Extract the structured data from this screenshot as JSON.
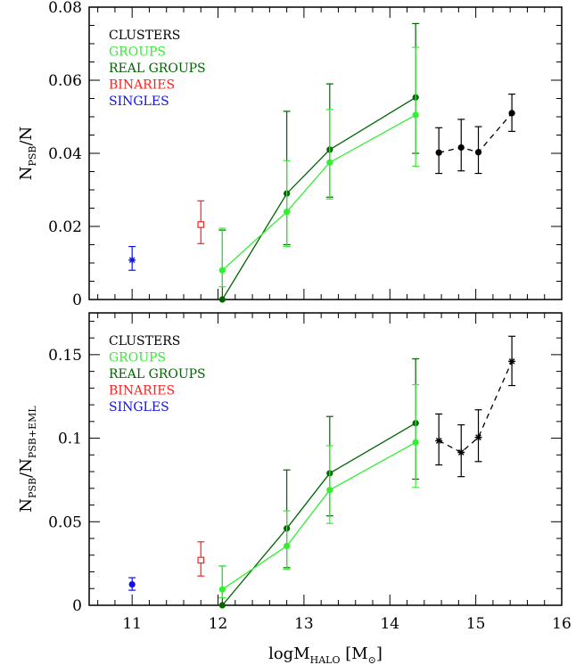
{
  "chart_data": [
    {
      "type": "line",
      "ylabel_main": "N",
      "ylabel_sub": "PSB",
      "ylabel_tail": "/N",
      "ylabel_sub2": "",
      "xlim": [
        10.5,
        16
      ],
      "ylim": [
        0,
        0.08
      ],
      "xticks": [
        11,
        12,
        13,
        14,
        15,
        16
      ],
      "yticks": [
        0,
        0.02,
        0.04,
        0.06,
        0.08
      ],
      "ytick_labels": [
        "0",
        "0.02",
        "0.04",
        "0.06",
        "0.08"
      ],
      "legend": [
        {
          "label": "CLUSTERS",
          "color": "#000000"
        },
        {
          "label": "GROUPS",
          "color": "#33ee33"
        },
        {
          "label": "REAL GROUPS",
          "color": "#006400"
        },
        {
          "label": "BINARIES",
          "color": "#ff2020"
        },
        {
          "label": "SINGLES",
          "color": "#1010ee"
        }
      ],
      "series": [
        {
          "name": "REAL GROUPS",
          "color": "#006400",
          "line": "solid",
          "marker": "dot",
          "points": [
            [
              12.05,
              0.0,
              0.0,
              0.019
            ],
            [
              12.8,
              0.029,
              0.015,
              0.0515
            ],
            [
              13.3,
              0.041,
              0.028,
              0.059
            ],
            [
              14.3,
              0.0553,
              0.04,
              0.0755
            ]
          ]
        },
        {
          "name": "GROUPS",
          "color": "#33ee33",
          "line": "solid",
          "marker": "dot",
          "points": [
            [
              12.05,
              0.008,
              0.0035,
              0.0195
            ],
            [
              12.8,
              0.024,
              0.0145,
              0.038
            ],
            [
              13.3,
              0.0375,
              0.0275,
              0.052
            ],
            [
              14.3,
              0.0505,
              0.0365,
              0.069
            ]
          ]
        },
        {
          "name": "CLUSTERS",
          "color": "#000000",
          "line": "dashed",
          "marker": "dot",
          "points": [
            [
              14.57,
              0.0402,
              0.0345,
              0.047
            ],
            [
              14.83,
              0.0416,
              0.0352,
              0.0493
            ],
            [
              15.03,
              0.0403,
              0.0345,
              0.0473
            ],
            [
              15.42,
              0.051,
              0.046,
              0.0562
            ]
          ]
        },
        {
          "name": "BINARIES",
          "color": "#ff2020",
          "line": "none",
          "marker": "square",
          "points": [
            [
              11.8,
              0.0205,
              0.0153,
              0.027
            ]
          ]
        },
        {
          "name": "SINGLES",
          "color": "#1010ee",
          "line": "none",
          "marker": "star",
          "points": [
            [
              11.0,
              0.0108,
              0.008,
              0.0145
            ]
          ]
        }
      ]
    },
    {
      "type": "line",
      "ylabel_main": "N",
      "ylabel_sub": "PSB",
      "ylabel_tail": "/N",
      "ylabel_sub2": "PSB+EML",
      "xlabel_main": "logM",
      "xlabel_sub": "HALO",
      "xlabel_tail": " [M",
      "xlabel_unit_end": "]",
      "xlim": [
        10.5,
        16
      ],
      "ylim": [
        0,
        0.175
      ],
      "xticks": [
        11,
        12,
        13,
        14,
        15,
        16
      ],
      "xtick_labels": [
        "11",
        "12",
        "13",
        "14",
        "15",
        "16"
      ],
      "yticks": [
        0,
        0.05,
        0.1,
        0.15
      ],
      "ytick_labels": [
        "0",
        "0.05",
        "0.1",
        "0.15"
      ],
      "legend": [
        {
          "label": "CLUSTERS",
          "color": "#000000"
        },
        {
          "label": "GROUPS",
          "color": "#33ee33"
        },
        {
          "label": "REAL GROUPS",
          "color": "#006400"
        },
        {
          "label": "BINARIES",
          "color": "#ff2020"
        },
        {
          "label": "SINGLES",
          "color": "#1010ee"
        }
      ],
      "series": [
        {
          "name": "REAL GROUPS",
          "color": "#006400",
          "line": "solid",
          "marker": "dot",
          "points": [
            [
              12.05,
              0.0,
              0.0,
              0.0235
            ],
            [
              12.8,
              0.046,
              0.0225,
              0.081
            ],
            [
              13.3,
              0.079,
              0.0535,
              0.113
            ],
            [
              14.3,
              0.109,
              0.0755,
              0.1475
            ]
          ]
        },
        {
          "name": "GROUPS",
          "color": "#33ee33",
          "line": "solid",
          "marker": "dot",
          "points": [
            [
              12.05,
              0.0095,
              0.0045,
              0.0235
            ],
            [
              12.8,
              0.0355,
              0.0215,
              0.0565
            ],
            [
              13.3,
              0.069,
              0.049,
              0.0955
            ],
            [
              14.3,
              0.0975,
              0.0705,
              0.132
            ]
          ]
        },
        {
          "name": "CLUSTERS",
          "color": "#000000",
          "line": "dashed",
          "marker": "star",
          "points": [
            [
              14.57,
              0.0985,
              0.084,
              0.1145
            ],
            [
              14.83,
              0.0915,
              0.077,
              0.108
            ],
            [
              15.03,
              0.1005,
              0.086,
              0.117
            ],
            [
              15.42,
              0.146,
              0.1315,
              0.161
            ]
          ]
        },
        {
          "name": "BINARIES",
          "color": "#ff2020",
          "line": "none",
          "marker": "square",
          "points": [
            [
              11.8,
              0.027,
              0.0175,
              0.038
            ]
          ]
        },
        {
          "name": "SINGLES",
          "color": "#1010ee",
          "line": "none",
          "marker": "dot",
          "points": [
            [
              11.0,
              0.0125,
              0.009,
              0.0165
            ]
          ]
        }
      ]
    }
  ]
}
